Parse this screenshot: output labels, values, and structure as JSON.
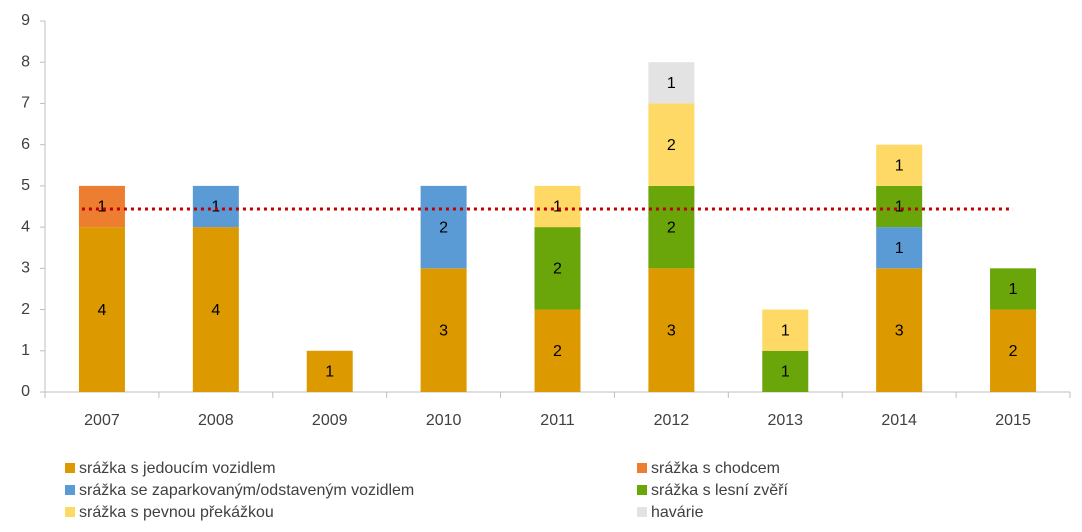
{
  "chart_data": {
    "type": "stacked_bar",
    "categories": [
      "2007",
      "2008",
      "2009",
      "2010",
      "2011",
      "2012",
      "2013",
      "2014",
      "2015"
    ],
    "series": [
      {
        "name": "srážka s jedoucím vozidlem",
        "color": "#dd9a00",
        "values": [
          4,
          4,
          1,
          3,
          2,
          3,
          null,
          3,
          2
        ]
      },
      {
        "name": "srážka s chodcem",
        "color": "#ed7d31",
        "values": [
          1,
          null,
          null,
          null,
          null,
          null,
          null,
          null,
          null
        ]
      },
      {
        "name": "srážka se zaparkovaným/odstaveným vozidlem",
        "color": "#5b9bd5",
        "values": [
          null,
          1,
          null,
          2,
          null,
          null,
          null,
          1,
          null
        ]
      },
      {
        "name": "srážka s lesní zvěří",
        "color": "#6aa50a",
        "values": [
          null,
          null,
          null,
          null,
          2,
          2,
          1,
          1,
          1
        ]
      },
      {
        "name": "srážka s pevnou překážkou",
        "color": "#ffd966",
        "values": [
          null,
          null,
          null,
          null,
          1,
          2,
          1,
          1,
          null
        ]
      },
      {
        "name": "havárie",
        "color": "#e3e3e3",
        "values": [
          null,
          null,
          null,
          null,
          null,
          1,
          null,
          null,
          null
        ]
      }
    ],
    "average_line": {
      "value": 4.44,
      "color": "#c00000"
    },
    "ylim": [
      0,
      9
    ],
    "yticks": [
      0,
      1,
      2,
      3,
      4,
      5,
      6,
      7,
      8,
      9
    ],
    "legend": "bottom"
  }
}
